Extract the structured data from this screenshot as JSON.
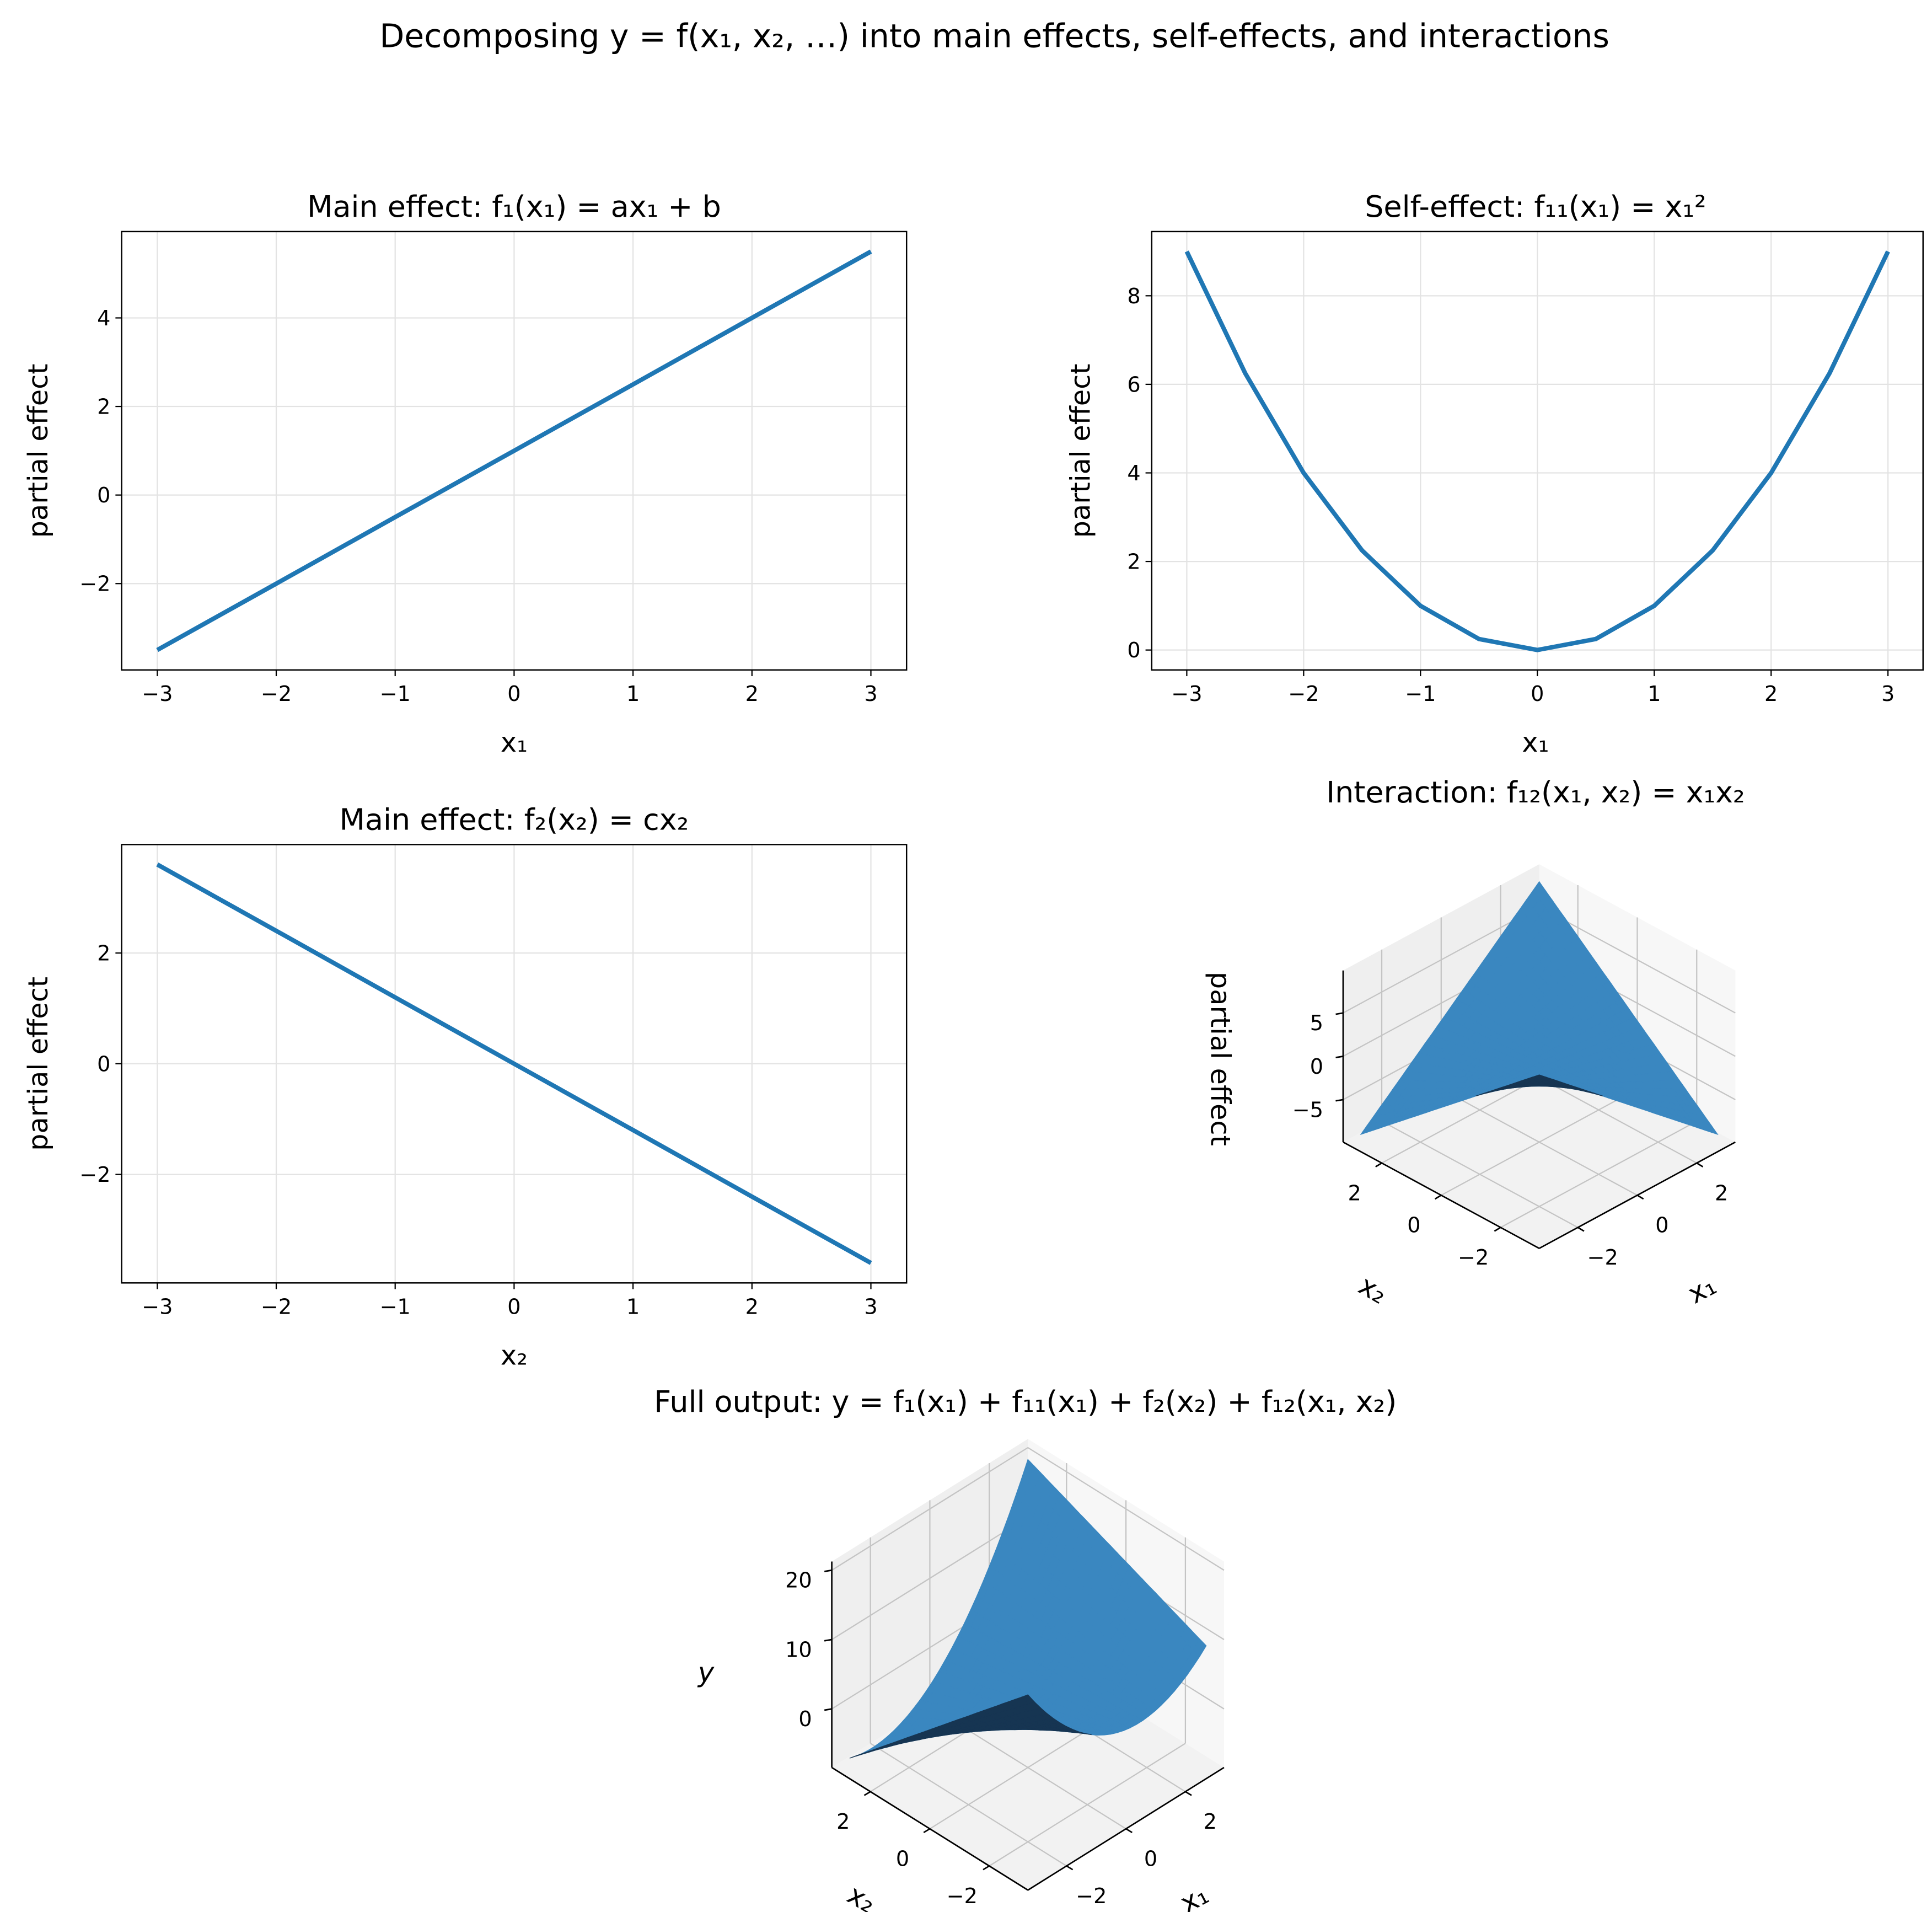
{
  "suptitle": "Decomposing y = f(x₁, x₂, …) into main effects, self-effects, and interactions",
  "colors": {
    "line": "#1f77b4",
    "surface": "#3a87c0",
    "surface_back": "#163552"
  },
  "chart_data": [
    {
      "type": "line",
      "title": "Main effect: f₁(x₁) = ax₁ + b",
      "xlabel": "x₁",
      "ylabel": "partial effect",
      "xlim": [
        -3.3,
        3.3
      ],
      "ylim": [
        -3.95,
        5.95
      ],
      "xticks": [
        -3,
        -2,
        -1,
        0,
        1,
        2,
        3
      ],
      "yticks": [
        -2,
        0,
        2,
        4
      ],
      "grid": true,
      "x": [
        -3,
        -2,
        -1,
        0,
        1,
        2,
        3
      ],
      "y": [
        -3.5,
        -2,
        -0.5,
        1,
        2.5,
        4,
        5.5
      ]
    },
    {
      "type": "line",
      "title": "Self-effect: f₁₁(x₁) = x₁²",
      "xlabel": "x₁",
      "ylabel": "partial effect",
      "xlim": [
        -3.3,
        3.3
      ],
      "ylim": [
        -0.45,
        9.45
      ],
      "xticks": [
        -3,
        -2,
        -1,
        0,
        1,
        2,
        3
      ],
      "yticks": [
        0,
        2,
        4,
        6,
        8
      ],
      "grid": true,
      "x": [
        -3,
        -2.5,
        -2,
        -1.5,
        -1,
        -0.5,
        0,
        0.5,
        1,
        1.5,
        2,
        2.5,
        3
      ],
      "y": [
        9,
        6.25,
        4,
        2.25,
        1,
        0.25,
        0,
        0.25,
        1,
        2.25,
        4,
        6.25,
        9
      ]
    },
    {
      "type": "line",
      "title": "Main effect: f₂(x₂) = cx₂",
      "xlabel": "x₂",
      "ylabel": "partial effect",
      "xlim": [
        -3.3,
        3.3
      ],
      "ylim": [
        -3.96,
        3.96
      ],
      "xticks": [
        -3,
        -2,
        -1,
        0,
        1,
        2,
        3
      ],
      "yticks": [
        -2,
        0,
        2
      ],
      "grid": true,
      "x": [
        -3,
        -2,
        -1,
        0,
        1,
        2,
        3
      ],
      "y": [
        3.6,
        2.4,
        1.2,
        0,
        -1.2,
        -2.4,
        -3.6
      ]
    },
    {
      "type": "surface",
      "title": "Interaction: f₁₂(x₁, x₂) = x₁x₂",
      "xlabel": "x₁",
      "ylabel": "x₂",
      "zlabel": "partial effect",
      "function": "x1*x2",
      "xlim": [
        -3,
        3
      ],
      "ylim": [
        -3,
        3
      ],
      "zlim": [
        -9,
        9
      ],
      "xticks": [
        -2,
        0,
        2
      ],
      "yticks": [
        -2,
        0,
        2
      ],
      "zticks": [
        -5,
        0,
        5
      ]
    },
    {
      "type": "surface",
      "title": "Full output: y = f₁(x₁) + f₁₁(x₁) + f₂(x₂) + f₁₂(x₁, x₂)",
      "xlabel": "x₁",
      "ylabel": "x₂",
      "zlabel": "y",
      "function": "1.5*x1 + 1 + x1^2 - 1.2*x2 + x1*x2",
      "xlim": [
        -3,
        3
      ],
      "ylim": [
        -3,
        3
      ],
      "zlim": [
        -7.1,
        19.9
      ],
      "xticks": [
        -2,
        0,
        2
      ],
      "yticks": [
        -2,
        0,
        2
      ],
      "zticks": [
        0,
        10,
        20
      ]
    }
  ]
}
